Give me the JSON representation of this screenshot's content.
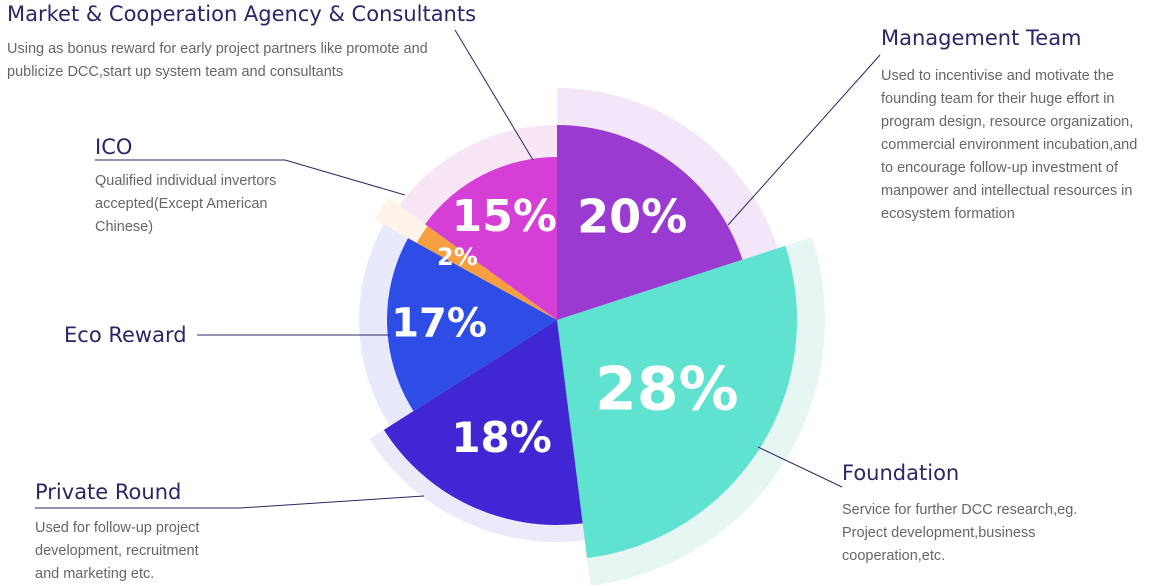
{
  "chart_data": {
    "type": "pie",
    "title": "",
    "slices": [
      {
        "key": "mgmt",
        "label": "Management Team",
        "value": 20,
        "value_label": "20%",
        "color": "#9b3ad1",
        "halo_color": "#f3e6f8",
        "description": "Used to incentivise and motivate the founding team for their huge effort in program design, resource organization, commercial environment incubation,and to encourage follow-up investment of manpower and intellectual resources in ecosystem formation"
      },
      {
        "key": "foundation",
        "label": "Foundation",
        "value": 28,
        "value_label": "28%",
        "color": "#5fe2d0",
        "halo_color": "#e6f6f3",
        "description": "Service for further DCC research,eg. Project development,business cooperation,etc."
      },
      {
        "key": "private",
        "label": "Private Round",
        "value": 18,
        "value_label": "18%",
        "color": "#4126d3",
        "halo_color": "#eceaf8",
        "description": "Used for follow-up project development, recruitment and marketing etc."
      },
      {
        "key": "eco",
        "label": "Eco Reward",
        "value": 17,
        "value_label": "17%",
        "color": "#2e4de6",
        "halo_color": "#e8e9fa",
        "description": ""
      },
      {
        "key": "ico",
        "label": "ICO",
        "value": 2,
        "value_label": "2%",
        "color": "#f59f40",
        "halo_color": "#fdf3e6",
        "description": "Qualified individual invertors accepted(Except American Chinese)"
      },
      {
        "key": "market",
        "label": "Market & Cooperation Agency & Consultants",
        "value": 15,
        "value_label": "15%",
        "color": "#d63fd6",
        "halo_color": "#f7e6f6",
        "description": "Using as bonus reward for early project partners like promote and publicize DCC,start up system team and consultants"
      }
    ],
    "leader_line_color": "#2c2566"
  }
}
